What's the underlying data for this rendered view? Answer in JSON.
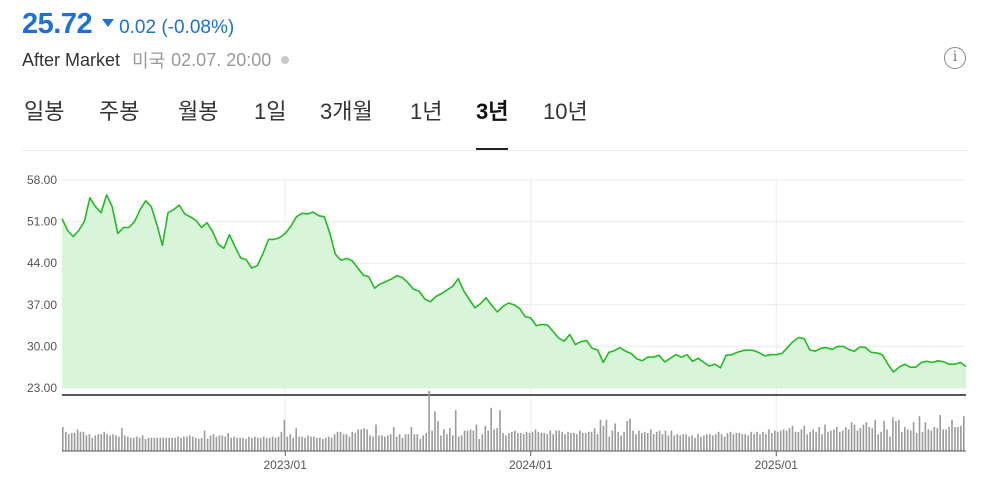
{
  "quote": {
    "price": "25.72",
    "change": "0.02 (-0.08%)",
    "direction": "down",
    "color": "#1e6fd6"
  },
  "market": {
    "label": "After Market",
    "region": "미국",
    "time": "02.07. 20:00"
  },
  "info_icon": "info-circle-icon",
  "tabs": [
    {
      "label": "일봉",
      "active": false
    },
    {
      "label": "주봉",
      "active": false
    },
    {
      "label": "월봉",
      "active": false
    },
    {
      "label": "1일",
      "active": false
    },
    {
      "label": "3개월",
      "active": false
    },
    {
      "label": "1년",
      "active": false
    },
    {
      "label": "3년",
      "active": true
    },
    {
      "label": "10년",
      "active": false
    }
  ],
  "chart_data": {
    "type": "area",
    "line_color": "#22bb22",
    "fill_color": "#d9f5d9",
    "volume_color": "#9a9a9a",
    "y_ticks": [
      "58.00",
      "51.00",
      "44.00",
      "37.00",
      "30.00",
      "23.00"
    ],
    "ylim": [
      23,
      58
    ],
    "x_ticks": [
      {
        "label": "2023/01",
        "index": 40
      },
      {
        "label": "2024/01",
        "index": 84
      },
      {
        "label": "2025/01",
        "index": 128
      }
    ],
    "grid": true,
    "prices": [
      51.5,
      49.5,
      48.5,
      49.5,
      51.0,
      55.0,
      53.5,
      52.5,
      55.5,
      53.5,
      49.0,
      50.0,
      50.0,
      51.0,
      53.0,
      54.5,
      53.5,
      50.5,
      47.0,
      52.5,
      53.0,
      53.8,
      52.3,
      51.8,
      51.2,
      50.0,
      50.8,
      49.3,
      47.2,
      46.5,
      48.8,
      46.8,
      44.9,
      44.6,
      43.2,
      43.6,
      45.6,
      48.0,
      48.0,
      48.3,
      49.0,
      50.2,
      51.8,
      52.4,
      52.3,
      52.6,
      52.0,
      51.8,
      49.0,
      45.5,
      44.5,
      44.8,
      44.4,
      43.2,
      42.0,
      41.7,
      39.8,
      40.5,
      40.9,
      41.3,
      41.9,
      41.6,
      40.7,
      39.6,
      39.3,
      38.0,
      37.5,
      38.4,
      38.9,
      39.5,
      40.1,
      41.4,
      39.3,
      37.9,
      36.5,
      37.2,
      38.2,
      36.9,
      35.8,
      36.7,
      37.3,
      37.0,
      36.4,
      35.0,
      34.8,
      33.5,
      33.7,
      33.6,
      32.5,
      31.4,
      30.9,
      32.0,
      30.3,
      30.8,
      31.0,
      29.7,
      29.4,
      27.3,
      29.0,
      29.3,
      29.8,
      29.2,
      28.8,
      27.9,
      27.6,
      28.2,
      28.2,
      28.5,
      27.4,
      28.0,
      28.6,
      28.2,
      28.6,
      27.5,
      28.0,
      27.3,
      26.7,
      27.0,
      26.4,
      28.5,
      28.6,
      29.0,
      29.3,
      29.4,
      29.3,
      28.9,
      28.4,
      28.6,
      28.6,
      28.8,
      29.8,
      30.8,
      31.5,
      31.3,
      29.4,
      29.2,
      29.7,
      29.8,
      29.5,
      30.0,
      30.0,
      29.5,
      29.2,
      29.9,
      29.8,
      29.0,
      28.9,
      28.6,
      27.0,
      25.7,
      26.5,
      27.0,
      26.5,
      26.5,
      27.3,
      27.5,
      27.3,
      27.6,
      27.4,
      27.0,
      27.0,
      27.3,
      26.6
    ],
    "volumes": [
      20,
      16,
      14,
      15,
      15,
      18,
      16,
      16,
      13,
      14,
      11,
      13,
      14,
      14,
      16,
      14,
      13,
      14,
      13,
      12,
      19,
      13,
      12,
      11,
      11,
      12,
      11,
      13,
      10,
      11,
      11,
      11,
      11,
      11,
      11,
      11,
      11,
      11,
      11,
      12,
      11,
      12,
      12,
      13,
      12,
      11,
      10,
      11,
      17,
      10,
      13,
      14,
      12,
      13,
      13,
      12,
      15,
      11,
      12,
      11,
      11,
      11,
      10,
      12,
      11,
      12,
      11,
      11,
      12,
      11,
      11,
      12,
      11,
      12,
      16,
      26,
      12,
      14,
      11,
      19,
      12,
      12,
      11,
      13,
      12,
      12,
      11,
      11,
      10,
      11,
      12,
      11,
      14,
      16,
      16,
      14,
      14,
      12,
      16,
      15,
      18,
      18,
      19,
      18,
      13,
      12,
      22,
      13,
      13,
      12,
      13,
      14,
      20,
      12,
      14,
      11,
      14,
      14,
      20,
      14,
      14,
      10,
      13,
      15,
      50,
      17,
      33,
      25,
      13,
      18,
      14,
      19,
      13,
      34,
      12,
      13,
      17,
      17,
      18,
      17,
      22,
      10,
      14,
      21,
      17,
      36,
      18,
      19,
      34,
      15,
      13,
      15,
      16,
      17,
      15,
      15,
      14,
      16,
      15,
      16,
      18,
      16,
      15,
      15,
      14,
      17,
      14,
      17,
      17,
      16,
      14,
      16,
      15,
      15,
      14,
      17,
      15,
      15,
      16,
      16,
      19,
      14,
      26,
      21,
      26,
      12,
      17,
      23,
      16,
      13,
      16,
      25,
      27,
      17,
      14,
      17,
      15,
      16,
      15,
      18,
      14,
      16,
      17,
      14,
      17,
      13,
      17,
      13,
      14,
      13,
      14,
      14,
      12,
      13,
      11,
      14,
      12,
      13,
      14,
      14,
      13,
      14,
      16,
      14,
      12,
      15,
      16,
      14,
      15,
      15,
      14,
      14,
      13,
      16,
      14,
      16,
      14,
      16,
      14,
      18,
      15,
      17,
      16,
      17,
      18,
      17,
      19,
      21,
      16,
      16,
      18,
      21,
      14,
      16,
      18,
      16,
      20,
      14,
      22,
      16,
      17,
      18,
      20,
      16,
      17,
      20,
      18,
      24,
      22,
      17,
      19,
      22,
      24,
      20,
      19,
      26,
      14,
      16,
      25,
      18,
      12,
      28,
      25,
      26,
      16,
      20,
      18,
      17,
      24,
      15,
      29,
      16,
      24,
      18,
      17,
      20,
      19,
      30,
      18,
      18,
      20,
      26,
      20,
      20,
      21,
      29
    ]
  }
}
